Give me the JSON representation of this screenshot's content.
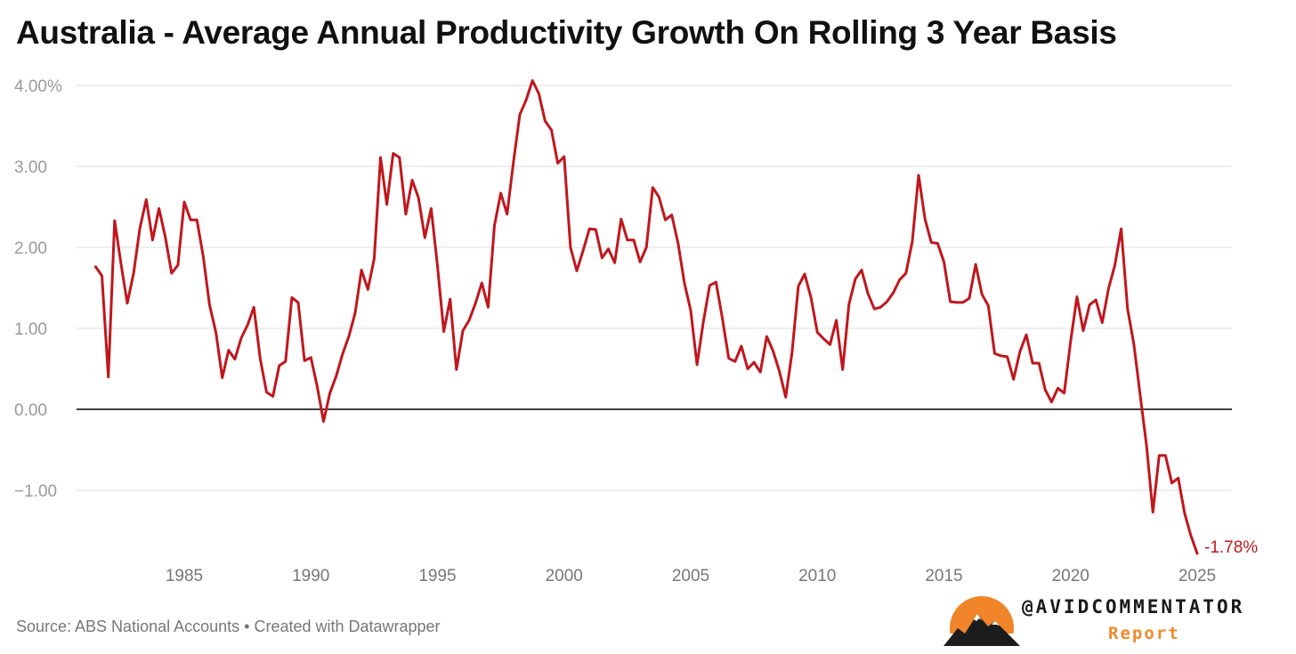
{
  "header": {
    "title": "Australia - Average Annual Productivity Growth On Rolling 3 Year Basis"
  },
  "footer": {
    "source": "Source: ABS National Accounts • Created with Datawrapper"
  },
  "brand": {
    "handle": "@AVIDCOMMENTATOR",
    "sub": "Report",
    "accent": "#f08a2c"
  },
  "colors": {
    "line": "#c0171d",
    "grid": "#dddddd",
    "zero": "#000000",
    "tick": "#999999"
  },
  "chart_data": {
    "type": "line",
    "title": "Australia - Average Annual Productivity Growth On Rolling 3 Year Basis",
    "xlabel": "",
    "ylabel": "",
    "xlim": [
      1981.25,
      2025.25
    ],
    "ylim": [
      -1.8,
      4.0
    ],
    "y_ticks": [
      {
        "value": 4,
        "label": "4.00%"
      },
      {
        "value": 3,
        "label": "3.00"
      },
      {
        "value": 2,
        "label": "2.00"
      },
      {
        "value": 1,
        "label": "1.00"
      },
      {
        "value": 0,
        "label": "0.00"
      },
      {
        "value": -1,
        "label": "−1.00"
      }
    ],
    "x_ticks": [
      "1985",
      "1990",
      "1995",
      "2000",
      "2005",
      "2010",
      "2015",
      "2020",
      "2025"
    ],
    "grid": true,
    "end_label": "-1.78%",
    "series": [
      {
        "color": "#c0171d",
        "points": [
          [
            1981.5,
            1.76
          ],
          [
            1981.75,
            1.65
          ],
          [
            1982.0,
            0.4
          ],
          [
            1982.25,
            2.33
          ],
          [
            1982.5,
            1.8
          ],
          [
            1982.75,
            1.31
          ],
          [
            1983.0,
            1.68
          ],
          [
            1983.25,
            2.24
          ],
          [
            1983.5,
            2.59
          ],
          [
            1983.75,
            2.09
          ],
          [
            1984.0,
            2.48
          ],
          [
            1984.25,
            2.13
          ],
          [
            1984.5,
            1.68
          ],
          [
            1984.75,
            1.78
          ],
          [
            1985.0,
            2.56
          ],
          [
            1985.25,
            2.34
          ],
          [
            1985.5,
            2.34
          ],
          [
            1985.75,
            1.89
          ],
          [
            1986.0,
            1.29
          ],
          [
            1986.25,
            0.95
          ],
          [
            1986.5,
            0.39
          ],
          [
            1986.75,
            0.73
          ],
          [
            1987.0,
            0.62
          ],
          [
            1987.25,
            0.88
          ],
          [
            1987.5,
            1.04
          ],
          [
            1987.75,
            1.26
          ],
          [
            1988.0,
            0.62
          ],
          [
            1988.25,
            0.21
          ],
          [
            1988.5,
            0.16
          ],
          [
            1988.75,
            0.54
          ],
          [
            1989.0,
            0.59
          ],
          [
            1989.25,
            1.38
          ],
          [
            1989.5,
            1.32
          ],
          [
            1989.75,
            0.6
          ],
          [
            1990.0,
            0.64
          ],
          [
            1990.25,
            0.28
          ],
          [
            1990.5,
            -0.15
          ],
          [
            1990.75,
            0.2
          ],
          [
            1991.0,
            0.41
          ],
          [
            1991.25,
            0.68
          ],
          [
            1991.5,
            0.9
          ],
          [
            1991.75,
            1.19
          ],
          [
            1992.0,
            1.72
          ],
          [
            1992.25,
            1.48
          ],
          [
            1992.5,
            1.86
          ],
          [
            1992.75,
            3.11
          ],
          [
            1993.0,
            2.53
          ],
          [
            1993.25,
            3.16
          ],
          [
            1993.5,
            3.11
          ],
          [
            1993.75,
            2.41
          ],
          [
            1994.0,
            2.83
          ],
          [
            1994.25,
            2.61
          ],
          [
            1994.5,
            2.12
          ],
          [
            1994.75,
            2.48
          ],
          [
            1995.0,
            1.77
          ],
          [
            1995.25,
            0.96
          ],
          [
            1995.5,
            1.36
          ],
          [
            1995.75,
            0.49
          ],
          [
            1996.0,
            0.97
          ],
          [
            1996.25,
            1.1
          ],
          [
            1996.5,
            1.31
          ],
          [
            1996.75,
            1.56
          ],
          [
            1997.0,
            1.26
          ],
          [
            1997.25,
            2.27
          ],
          [
            1997.5,
            2.67
          ],
          [
            1997.75,
            2.41
          ],
          [
            1998.0,
            3.05
          ],
          [
            1998.25,
            3.64
          ],
          [
            1998.5,
            3.82
          ],
          [
            1998.75,
            4.06
          ],
          [
            1999.0,
            3.9
          ],
          [
            1999.25,
            3.56
          ],
          [
            1999.5,
            3.45
          ],
          [
            1999.75,
            3.04
          ],
          [
            2000.0,
            3.12
          ],
          [
            2000.25,
            2.0
          ],
          [
            2000.5,
            1.71
          ],
          [
            2000.75,
            1.96
          ],
          [
            2001.0,
            2.23
          ],
          [
            2001.25,
            2.22
          ],
          [
            2001.5,
            1.87
          ],
          [
            2001.75,
            1.98
          ],
          [
            2002.0,
            1.81
          ],
          [
            2002.25,
            2.35
          ],
          [
            2002.5,
            2.09
          ],
          [
            2002.75,
            2.09
          ],
          [
            2003.0,
            1.82
          ],
          [
            2003.25,
            2.0
          ],
          [
            2003.5,
            2.74
          ],
          [
            2003.75,
            2.62
          ],
          [
            2004.0,
            2.34
          ],
          [
            2004.25,
            2.4
          ],
          [
            2004.5,
            2.05
          ],
          [
            2004.75,
            1.56
          ],
          [
            2005.0,
            1.22
          ],
          [
            2005.25,
            0.55
          ],
          [
            2005.5,
            1.08
          ],
          [
            2005.75,
            1.53
          ],
          [
            2006.0,
            1.57
          ],
          [
            2006.25,
            1.12
          ],
          [
            2006.5,
            0.63
          ],
          [
            2006.75,
            0.59
          ],
          [
            2007.0,
            0.78
          ],
          [
            2007.25,
            0.5
          ],
          [
            2007.5,
            0.58
          ],
          [
            2007.75,
            0.46
          ],
          [
            2008.0,
            0.9
          ],
          [
            2008.25,
            0.72
          ],
          [
            2008.5,
            0.47
          ],
          [
            2008.75,
            0.15
          ],
          [
            2009.0,
            0.7
          ],
          [
            2009.25,
            1.52
          ],
          [
            2009.5,
            1.67
          ],
          [
            2009.75,
            1.38
          ],
          [
            2010.0,
            0.95
          ],
          [
            2010.25,
            0.87
          ],
          [
            2010.5,
            0.8
          ],
          [
            2010.75,
            1.1
          ],
          [
            2011.0,
            0.49
          ],
          [
            2011.25,
            1.3
          ],
          [
            2011.5,
            1.61
          ],
          [
            2011.75,
            1.72
          ],
          [
            2012.0,
            1.43
          ],
          [
            2012.25,
            1.24
          ],
          [
            2012.5,
            1.26
          ],
          [
            2012.75,
            1.33
          ],
          [
            2013.0,
            1.44
          ],
          [
            2013.25,
            1.6
          ],
          [
            2013.5,
            1.68
          ],
          [
            2013.75,
            2.07
          ],
          [
            2014.0,
            2.89
          ],
          [
            2014.25,
            2.35
          ],
          [
            2014.5,
            2.06
          ],
          [
            2014.75,
            2.05
          ],
          [
            2015.0,
            1.82
          ],
          [
            2015.25,
            1.33
          ],
          [
            2015.5,
            1.32
          ],
          [
            2015.75,
            1.32
          ],
          [
            2016.0,
            1.37
          ],
          [
            2016.25,
            1.79
          ],
          [
            2016.5,
            1.42
          ],
          [
            2016.75,
            1.28
          ],
          [
            2017.0,
            0.69
          ],
          [
            2017.25,
            0.66
          ],
          [
            2017.5,
            0.65
          ],
          [
            2017.75,
            0.37
          ],
          [
            2018.0,
            0.71
          ],
          [
            2018.25,
            0.92
          ],
          [
            2018.5,
            0.57
          ],
          [
            2018.75,
            0.57
          ],
          [
            2019.0,
            0.24
          ],
          [
            2019.25,
            0.09
          ],
          [
            2019.5,
            0.26
          ],
          [
            2019.75,
            0.2
          ],
          [
            2020.0,
            0.84
          ],
          [
            2020.25,
            1.39
          ],
          [
            2020.5,
            0.97
          ],
          [
            2020.75,
            1.29
          ],
          [
            2021.0,
            1.35
          ],
          [
            2021.25,
            1.07
          ],
          [
            2021.5,
            1.49
          ],
          [
            2021.75,
            1.78
          ],
          [
            2022.0,
            2.23
          ],
          [
            2022.25,
            1.24
          ],
          [
            2022.5,
            0.8
          ],
          [
            2022.75,
            0.17
          ],
          [
            2023.0,
            -0.45
          ],
          [
            2023.25,
            -1.27
          ],
          [
            2023.5,
            -0.57
          ],
          [
            2023.75,
            -0.57
          ],
          [
            2024.0,
            -0.91
          ],
          [
            2024.25,
            -0.85
          ],
          [
            2024.5,
            -1.28
          ],
          [
            2024.75,
            -1.56
          ],
          [
            2025.0,
            -1.78
          ]
        ]
      }
    ]
  }
}
